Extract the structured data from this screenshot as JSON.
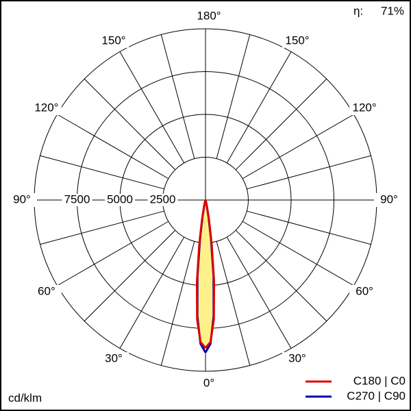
{
  "chart_data": {
    "type": "polar",
    "efficiency_label": "η:",
    "efficiency": "71%",
    "unit": "cd/klm",
    "x": [
      0,
      2,
      4,
      6,
      8,
      10,
      12,
      15,
      20
    ],
    "xticks": [
      {
        "value": 0,
        "label": "0°"
      },
      {
        "value": 30,
        "label": "30°"
      },
      {
        "value": 60,
        "label": "60°"
      },
      {
        "value": 90,
        "label": "90°"
      },
      {
        "value": 120,
        "label": "120°"
      },
      {
        "value": 150,
        "label": "150°"
      },
      {
        "value": 180,
        "label": "180°"
      }
    ],
    "rlim": [
      0,
      10000
    ],
    "rticks": [
      2500,
      5000,
      7500
    ],
    "fill_color": "#fff08a",
    "series": [
      {
        "name": "C270 | C90",
        "color": "#0000b4",
        "values": [
          8900,
          8400,
          6800,
          4500,
          2300,
          1000,
          400,
          120,
          0
        ]
      },
      {
        "name": "C180 | C0",
        "color": "#e00000",
        "values": [
          8640,
          8300,
          7000,
          4800,
          2600,
          1200,
          500,
          150,
          0
        ]
      }
    ]
  }
}
